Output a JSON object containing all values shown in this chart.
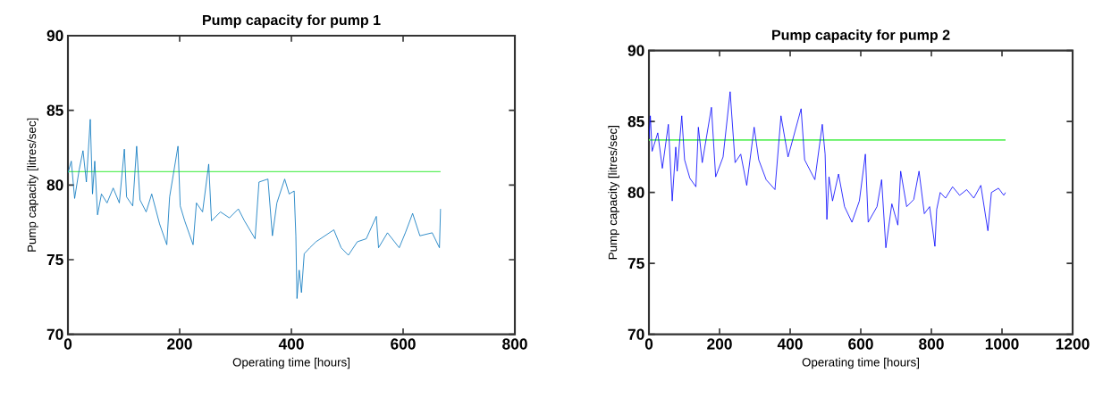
{
  "chart_data": [
    {
      "type": "line",
      "title": "Pump capacity for pump 1",
      "xlabel": "Operating time [hours]",
      "ylabel": "Pump capacity [litres/sec]",
      "xlim": [
        0,
        800
      ],
      "ylim": [
        70,
        90
      ],
      "xticks": [
        0,
        200,
        400,
        600,
        800
      ],
      "yticks": [
        70,
        75,
        80,
        85,
        90
      ],
      "series": [
        {
          "color": "#0072bd",
          "x": [
            0,
            6,
            12,
            20,
            27,
            33,
            40,
            44,
            48,
            53,
            60,
            70,
            81,
            92,
            101,
            105,
            116,
            123,
            129,
            140,
            150,
            164,
            177,
            182,
            197,
            201,
            209,
            224,
            230,
            241,
            252,
            257,
            273,
            289,
            305,
            316,
            335,
            342,
            358,
            366,
            374,
            388,
            396,
            405,
            408,
            410,
            414,
            418,
            423,
            433,
            444,
            460,
            476,
            489,
            502,
            518,
            534,
            552,
            556,
            572,
            593,
            604,
            617,
            630,
            652,
            665,
            667
          ],
          "values": [
            80.8,
            81.6,
            79.1,
            81.0,
            82.3,
            80.2,
            84.4,
            79.4,
            81.6,
            78.0,
            79.4,
            78.8,
            79.8,
            78.8,
            82.4,
            79.2,
            78.6,
            82.6,
            79.0,
            78.2,
            79.4,
            77.4,
            76.0,
            79.2,
            82.6,
            78.6,
            77.6,
            76.0,
            78.8,
            78.2,
            81.4,
            77.6,
            78.2,
            77.8,
            78.4,
            77.6,
            76.4,
            80.2,
            80.4,
            76.6,
            78.8,
            80.4,
            79.4,
            79.6,
            76.6,
            72.4,
            74.3,
            72.8,
            75.4,
            75.8,
            76.2,
            76.6,
            77.0,
            75.8,
            75.3,
            76.2,
            76.4,
            77.9,
            75.8,
            76.8,
            75.8,
            76.8,
            78.1,
            76.6,
            76.8,
            75.8,
            78.4
          ]
        },
        {
          "color": "#5cf05c",
          "x": [
            0,
            667
          ],
          "values": [
            80.9,
            80.9
          ]
        }
      ]
    },
    {
      "type": "line",
      "title": "Pump capacity for pump 2",
      "xlabel": "Operating time [hours]",
      "ylabel": "Pump capacity [litres/sec]",
      "xlim": [
        0,
        1200
      ],
      "ylim": [
        70,
        90
      ],
      "xticks": [
        0,
        200,
        400,
        600,
        800,
        1000,
        1200
      ],
      "yticks": [
        70,
        75,
        80,
        85,
        90
      ],
      "series": [
        {
          "color": "#0000ff",
          "x": [
            0,
            4,
            9,
            25,
            38,
            55,
            66,
            76,
            80,
            93,
            101,
            116,
            133,
            140,
            151,
            177,
            189,
            210,
            230,
            244,
            260,
            277,
            298,
            311,
            332,
            357,
            374,
            394,
            431,
            441,
            470,
            491,
            499,
            504,
            510,
            520,
            537,
            554,
            575,
            596,
            613,
            621,
            646,
            659,
            671,
            688,
            705,
            713,
            730,
            750,
            765,
            780,
            795,
            810,
            815,
            825,
            840,
            860,
            880,
            900,
            920,
            940,
            960,
            970,
            990,
            1005,
            1010
          ],
          "values": [
            83.8,
            85.4,
            82.9,
            84.2,
            81.7,
            84.8,
            79.4,
            83.2,
            81.5,
            85.4,
            82.3,
            81.0,
            80.4,
            84.6,
            82.1,
            86.0,
            81.1,
            82.5,
            87.1,
            82.1,
            82.7,
            80.5,
            84.6,
            82.3,
            80.9,
            80.2,
            85.4,
            82.5,
            85.9,
            82.3,
            80.9,
            84.8,
            82.7,
            78.1,
            81.1,
            79.4,
            81.3,
            79.0,
            77.9,
            79.4,
            82.7,
            77.9,
            79.0,
            80.9,
            76.1,
            79.2,
            77.7,
            81.5,
            79.0,
            79.5,
            81.5,
            78.5,
            79.0,
            76.2,
            78.8,
            80.0,
            79.6,
            80.4,
            79.8,
            80.2,
            79.6,
            80.5,
            77.3,
            80.0,
            80.3,
            79.8,
            80.0
          ]
        },
        {
          "color": "#5cf05c",
          "x": [
            0,
            1010
          ],
          "values": [
            83.7,
            83.7
          ]
        }
      ]
    }
  ]
}
